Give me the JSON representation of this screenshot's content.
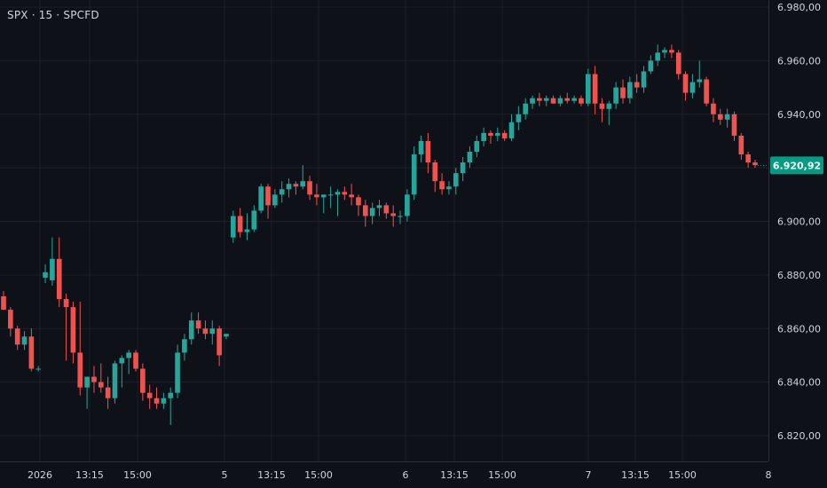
{
  "header": {
    "symbol": "SPX · 15 · SPCFD"
  },
  "chart_data": {
    "type": "candlestick",
    "title": "SPX · 15 · SPCFD",
    "ylim": [
      6810,
      6985
    ],
    "y_ticks": [
      "6.820,00",
      "6.840,00",
      "6.860,00",
      "6.880,00",
      "6.900,00",
      "6.920,00",
      "6.940,00",
      "6.960,00",
      "6.980,00"
    ],
    "y_tick_values": [
      6820,
      6840,
      6860,
      6880,
      6900,
      6920,
      6940,
      6960,
      6980
    ],
    "x_ticks": [
      "2026",
      "13:15",
      "15:00",
      "5",
      "13:15",
      "15:00",
      "6",
      "13:15",
      "15:00",
      "7",
      "13:15",
      "15:00",
      "8"
    ],
    "x_tick_bold": [
      true,
      false,
      false,
      false,
      false,
      false,
      false,
      false,
      false,
      false,
      false,
      false,
      false
    ],
    "last_price": 6920.92,
    "last_price_label": "6.920,92",
    "colors": {
      "up": "#26a69a",
      "down": "#ef5350",
      "background": "#0f1118",
      "grid": "#1d2029",
      "badge": "#089981"
    },
    "candles": [
      [
        6872,
        6874,
        6867,
        6867
      ],
      [
        6867,
        6868,
        6857,
        6860
      ],
      [
        6860,
        6861,
        6852,
        6854
      ],
      [
        6854,
        6859,
        6852,
        6857
      ],
      [
        6857,
        6860,
        6844,
        6845
      ],
      [
        6845,
        6846,
        6844,
        6845
      ],
      [
        6879,
        6884,
        6877,
        6881
      ],
      [
        6878,
        6894,
        6876,
        6886
      ],
      [
        6886,
        6894,
        6868,
        6871
      ],
      [
        6871,
        6873,
        6848,
        6868
      ],
      [
        6868,
        6870,
        6847,
        6851
      ],
      [
        6851,
        6870,
        6835,
        6838
      ],
      [
        6838,
        6841,
        6830,
        6842
      ],
      [
        6842,
        6846,
        6836,
        6840
      ],
      [
        6840,
        6847,
        6836,
        6838
      ],
      [
        6838,
        6842,
        6830,
        6834
      ],
      [
        6834,
        6848,
        6832,
        6847
      ],
      [
        6847,
        6850,
        6838,
        6849
      ],
      [
        6849,
        6852,
        6843,
        6851
      ],
      [
        6851,
        6852,
        6844,
        6845
      ],
      [
        6845,
        6847,
        6833,
        6836
      ],
      [
        6836,
        6839,
        6830,
        6834
      ],
      [
        6834,
        6838,
        6830,
        6832
      ],
      [
        6832,
        6836,
        6830,
        6834
      ],
      [
        6834,
        6838,
        6824,
        6836
      ],
      [
        6836,
        6854,
        6834,
        6851
      ],
      [
        6851,
        6858,
        6848,
        6856
      ],
      [
        6856,
        6866,
        6854,
        6863
      ],
      [
        6863,
        6866,
        6858,
        6860
      ],
      [
        6860,
        6863,
        6856,
        6858
      ],
      [
        6858,
        6863,
        6854,
        6860
      ],
      [
        6860,
        6861,
        6846,
        6850
      ],
      [
        6857,
        6858,
        6856,
        6858
      ],
      [
        6894,
        6904,
        6892,
        6902
      ],
      [
        6902,
        6905,
        6894,
        6896
      ],
      [
        6896,
        6903,
        6893,
        6897
      ],
      [
        6897,
        6906,
        6896,
        6904
      ],
      [
        6904,
        6914,
        6903,
        6913
      ],
      [
        6913,
        6914,
        6901,
        6906
      ],
      [
        6906,
        6912,
        6905,
        6910
      ],
      [
        6910,
        6915,
        6907,
        6912
      ],
      [
        6912,
        6916,
        6909,
        6914
      ],
      [
        6914,
        6915,
        6910,
        6913
      ],
      [
        6913,
        6921,
        6912,
        6915
      ],
      [
        6915,
        6917,
        6908,
        6910
      ],
      [
        6910,
        6914,
        6906,
        6909
      ],
      [
        6909,
        6910,
        6903,
        6910
      ],
      [
        6910,
        6913,
        6905,
        6910
      ],
      [
        6910,
        6912,
        6902,
        6911
      ],
      [
        6911,
        6913,
        6908,
        6910
      ],
      [
        6910,
        6914,
        6906,
        6909
      ],
      [
        6909,
        6910,
        6902,
        6906
      ],
      [
        6906,
        6908,
        6898,
        6902
      ],
      [
        6902,
        6907,
        6899,
        6905
      ],
      [
        6905,
        6908,
        6902,
        6906
      ],
      [
        6906,
        6907,
        6901,
        6903
      ],
      [
        6903,
        6906,
        6898,
        6902
      ],
      [
        6902,
        6904,
        6899,
        6902
      ],
      [
        6902,
        6912,
        6900,
        6910
      ],
      [
        6910,
        6928,
        6908,
        6925
      ],
      [
        6925,
        6932,
        6922,
        6930
      ],
      [
        6930,
        6933,
        6918,
        6922
      ],
      [
        6922,
        6923,
        6911,
        6915
      ],
      [
        6915,
        6918,
        6910,
        6912
      ],
      [
        6912,
        6915,
        6910,
        6913
      ],
      [
        6913,
        6920,
        6910,
        6918
      ],
      [
        6918,
        6924,
        6915,
        6922
      ],
      [
        6922,
        6928,
        6920,
        6926
      ],
      [
        6926,
        6932,
        6924,
        6930
      ],
      [
        6930,
        6935,
        6928,
        6933
      ],
      [
        6933,
        6934,
        6929,
        6932
      ],
      [
        6932,
        6935,
        6930,
        6933
      ],
      [
        6933,
        6934,
        6930,
        6931
      ],
      [
        6931,
        6940,
        6930,
        6937
      ],
      [
        6937,
        6943,
        6934,
        6940
      ],
      [
        6940,
        6946,
        6938,
        6944
      ],
      [
        6944,
        6947,
        6942,
        6946
      ],
      [
        6946,
        6948,
        6943,
        6945
      ],
      [
        6945,
        6947,
        6943,
        6946
      ],
      [
        6946,
        6947,
        6944,
        6944
      ],
      [
        6944,
        6947,
        6943,
        6946
      ],
      [
        6946,
        6948,
        6944,
        6945
      ],
      [
        6945,
        6947,
        6944,
        6946
      ],
      [
        6946,
        6947,
        6943,
        6944
      ],
      [
        6944,
        6957,
        6943,
        6955
      ],
      [
        6955,
        6958,
        6940,
        6944
      ],
      [
        6944,
        6946,
        6937,
        6942
      ],
      [
        6942,
        6945,
        6936,
        6944
      ],
      [
        6944,
        6952,
        6942,
        6950
      ],
      [
        6950,
        6953,
        6944,
        6946
      ],
      [
        6946,
        6954,
        6944,
        6952
      ],
      [
        6952,
        6955,
        6948,
        6950
      ],
      [
        6950,
        6958,
        6948,
        6956
      ],
      [
        6956,
        6962,
        6955,
        6960
      ],
      [
        6960,
        6966,
        6958,
        6963
      ],
      [
        6963,
        6965,
        6961,
        6964
      ],
      [
        6964,
        6966,
        6961,
        6963
      ],
      [
        6963,
        6964,
        6953,
        6955
      ],
      [
        6955,
        6956,
        6945,
        6948
      ],
      [
        6948,
        6955,
        6946,
        6952
      ],
      [
        6952,
        6960,
        6950,
        6953
      ],
      [
        6953,
        6954,
        6943,
        6944
      ],
      [
        6944,
        6946,
        6937,
        6940
      ],
      [
        6940,
        6942,
        6936,
        6938
      ],
      [
        6938,
        6942,
        6935,
        6940
      ],
      [
        6940,
        6941,
        6930,
        6932
      ],
      [
        6932,
        6933,
        6923,
        6925
      ],
      [
        6925,
        6926,
        6920,
        6922
      ],
      [
        6922,
        6923,
        6920,
        6921
      ]
    ]
  }
}
